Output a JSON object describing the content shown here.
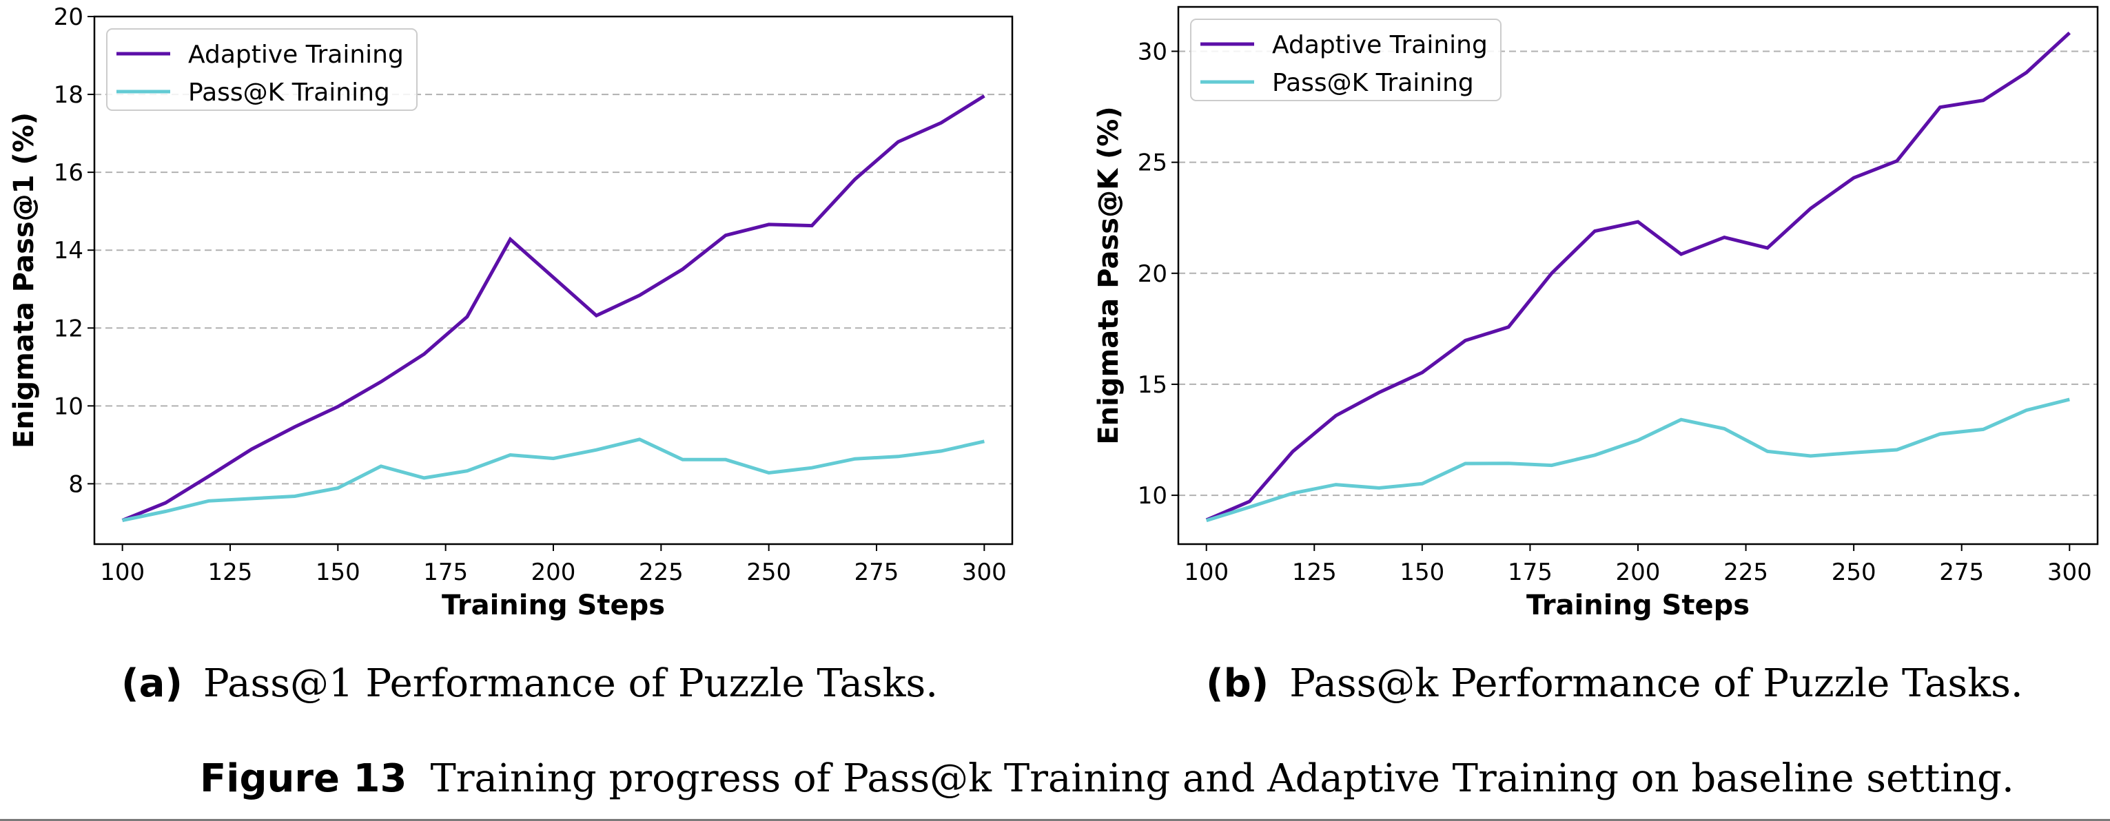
{
  "colors": {
    "adaptive": "#5c0fa8",
    "passk": "#63cbd4",
    "grid": "#b0b0b0",
    "axis": "#000000",
    "legend_border": "#cccccc"
  },
  "chart_data": [
    {
      "type": "line",
      "title": "",
      "xlabel": "Training Steps",
      "ylabel": "Enigmata Pass@1 (%)",
      "xlim": [
        93.5,
        306.5
      ],
      "ylim": [
        6.45,
        20
      ],
      "xticks": [
        100,
        125,
        150,
        175,
        200,
        225,
        250,
        275,
        300
      ],
      "yticks": [
        8,
        10,
        12,
        14,
        16,
        18,
        20
      ],
      "grid": "y-dashed",
      "legend": "top-left",
      "x": [
        100,
        110,
        120,
        130,
        140,
        150,
        160,
        170,
        180,
        190,
        200,
        210,
        220,
        230,
        240,
        250,
        260,
        270,
        280,
        290,
        300
      ],
      "series": [
        {
          "name": "Adaptive Training",
          "color_key": "adaptive",
          "values": [
            7.06,
            7.51,
            8.19,
            8.89,
            9.46,
            9.98,
            10.62,
            11.33,
            12.29,
            14.28,
            13.3,
            12.32,
            12.84,
            13.51,
            14.38,
            14.66,
            14.63,
            15.82,
            16.78,
            17.27,
            17.96
          ]
        },
        {
          "name": "Pass@K Training",
          "color_key": "passk",
          "values": [
            7.06,
            7.29,
            7.56,
            7.62,
            7.68,
            7.89,
            8.45,
            8.15,
            8.33,
            8.74,
            8.65,
            8.87,
            9.14,
            8.62,
            8.62,
            8.28,
            8.41,
            8.64,
            8.7,
            8.84,
            9.09
          ]
        }
      ],
      "subcaption_tag": "(a)",
      "subcaption": "Pass@1 Performance of Puzzle Tasks."
    },
    {
      "type": "line",
      "title": "",
      "xlabel": "Training Steps",
      "ylabel": "Enigmata Pass@K (%)",
      "xlim": [
        93.5,
        306.5
      ],
      "ylim": [
        7.8,
        32.0
      ],
      "xticks": [
        100,
        125,
        150,
        175,
        200,
        225,
        250,
        275,
        300
      ],
      "yticks": [
        10,
        15,
        20,
        25,
        30
      ],
      "grid": "y-dashed",
      "legend": "top-left",
      "x": [
        100,
        110,
        120,
        130,
        140,
        150,
        160,
        170,
        180,
        190,
        200,
        210,
        220,
        230,
        240,
        250,
        260,
        270,
        280,
        290,
        300
      ],
      "series": [
        {
          "name": "Adaptive Training",
          "color_key": "adaptive",
          "values": [
            8.89,
            9.72,
            11.97,
            13.59,
            14.63,
            15.53,
            16.97,
            17.58,
            20.0,
            21.9,
            22.32,
            20.86,
            21.62,
            21.14,
            22.92,
            24.3,
            25.06,
            27.48,
            27.79,
            29.04,
            30.83
          ]
        },
        {
          "name": "Pass@K Training",
          "color_key": "passk",
          "values": [
            8.86,
            9.47,
            10.09,
            10.48,
            10.33,
            10.52,
            11.43,
            11.44,
            11.35,
            11.81,
            12.48,
            13.41,
            13.0,
            11.98,
            11.77,
            11.92,
            12.05,
            12.76,
            12.97,
            13.83,
            14.32
          ]
        }
      ],
      "subcaption_tag": "(b)",
      "subcaption": "Pass@k Performance of Puzzle Tasks."
    }
  ],
  "figure_caption": {
    "tag": "Figure 13",
    "text": "Training progress of Pass@k Training and Adaptive Training on baseline setting."
  }
}
